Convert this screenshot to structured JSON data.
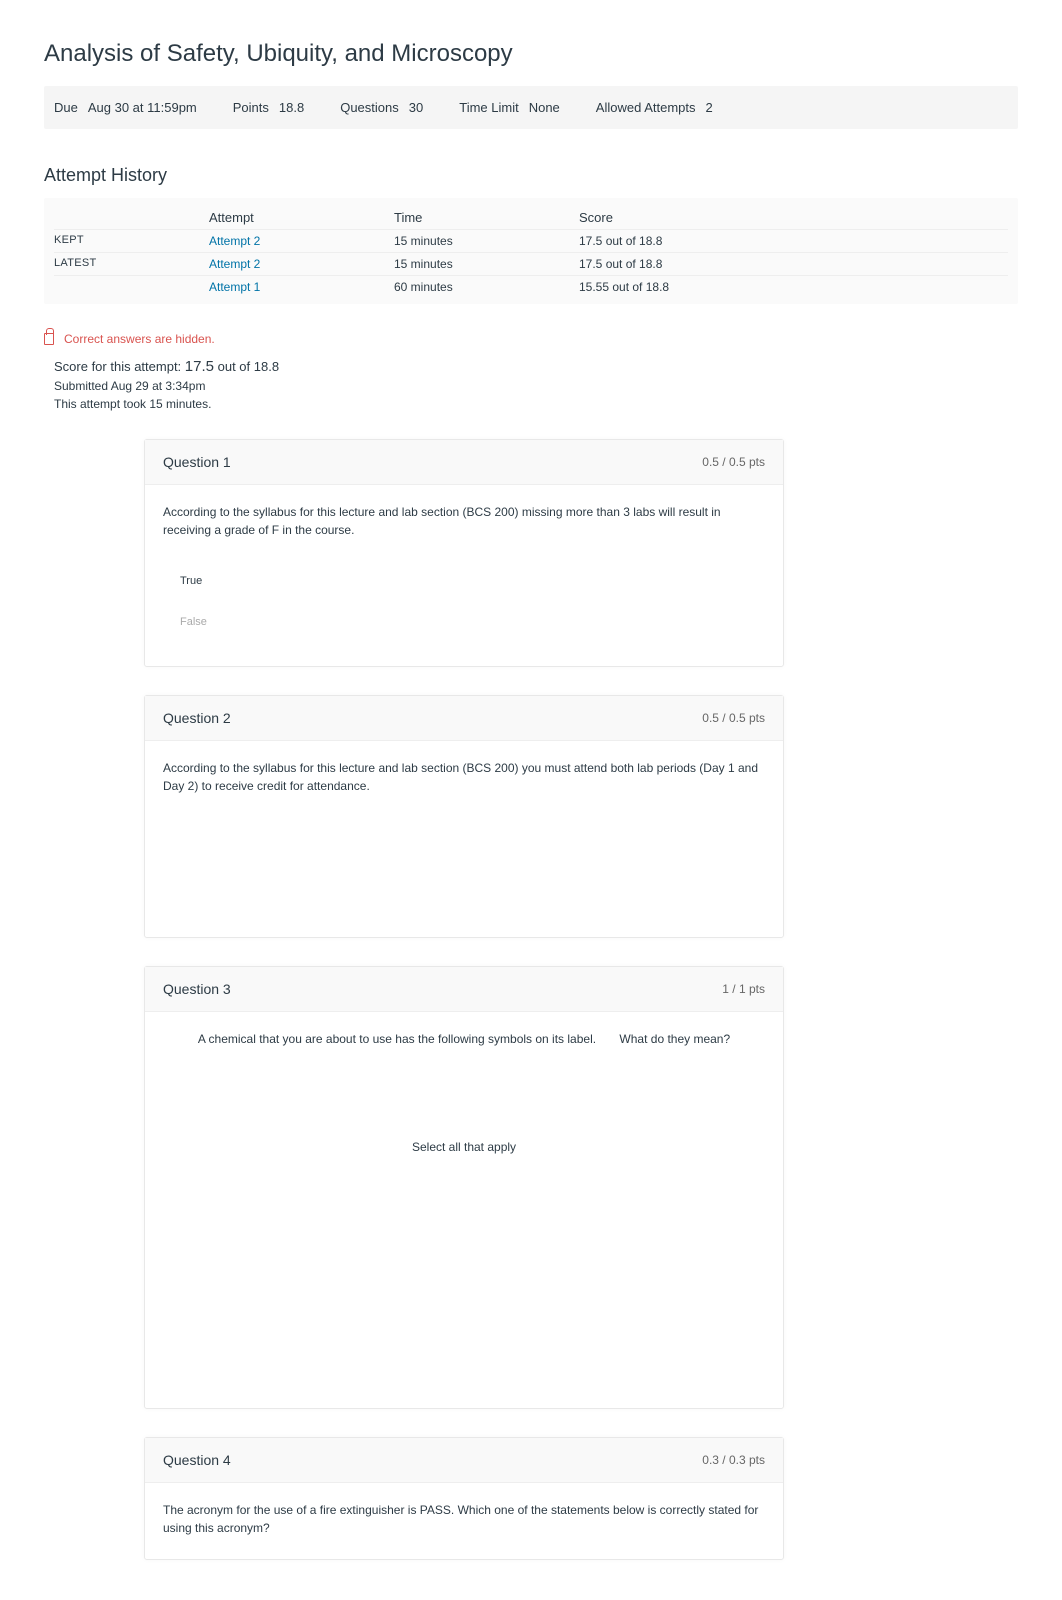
{
  "title": "Analysis of Safety, Ubiquity, and Microscopy",
  "meta": {
    "due_label": "Due",
    "due_value": "Aug 30 at 11:59pm",
    "points_label": "Points",
    "points_value": "18.8",
    "questions_label": "Questions",
    "questions_value": "30",
    "timelimit_label": "Time Limit",
    "timelimit_value": "None",
    "attempts_label": "Allowed Attempts",
    "attempts_value": "2"
  },
  "history": {
    "heading": "Attempt History",
    "header": {
      "attempt": "Attempt",
      "time": "Time",
      "score": "Score"
    },
    "rows": [
      {
        "tag": "KEPT",
        "attempt": "Attempt 2",
        "time": "15 minutes",
        "score": "17.5 out of 18.8"
      },
      {
        "tag": "LATEST",
        "attempt": "Attempt 2",
        "time": "15 minutes",
        "score": "17.5 out of 18.8"
      },
      {
        "tag": "",
        "attempt": "Attempt 1",
        "time": "60 minutes",
        "score": "15.55 out of 18.8"
      }
    ]
  },
  "hidden_notice": "Correct answers are hidden.",
  "attempt_score": {
    "prefix": "Score for this attempt:",
    "score": "17.5",
    "suffix": "out of 18.8"
  },
  "submitted": "Submitted Aug 29 at 3:34pm",
  "duration": "This attempt took 15 minutes.",
  "questions": [
    {
      "title": "Question 1",
      "pts": "0.5 / 0.5 pts",
      "text": "According to the syllabus for this lecture and lab section (BCS 200) missing more than 3 labs will result in receiving a grade of F in the course.",
      "answers": [
        {
          "text": "True",
          "muted": false
        },
        {
          "text": "False",
          "muted": true
        }
      ]
    },
    {
      "title": "Question 2",
      "pts": "0.5 / 0.5 pts",
      "text": "According to the syllabus for this lecture and lab section (BCS 200) you must attend both lab periods (Day 1 and Day 2) to receive credit for attendance."
    },
    {
      "title": "Question 3",
      "pts": "1 / 1 pts",
      "text_a": "A chemical that you are about to use has the following symbols on its label.",
      "text_b": "What do they mean?",
      "select_all": "Select all that apply"
    },
    {
      "title": "Question 4",
      "pts": "0.3 / 0.3 pts",
      "text": "The acronym for the use of a fire extinguisher is PASS. Which one of the statements below is correctly stated for using this acronym?"
    }
  ],
  "colors": {
    "link": "#0073a7",
    "danger": "#d9534f",
    "text": "#2d3b45",
    "bg_light": "#f5f5f5"
  }
}
